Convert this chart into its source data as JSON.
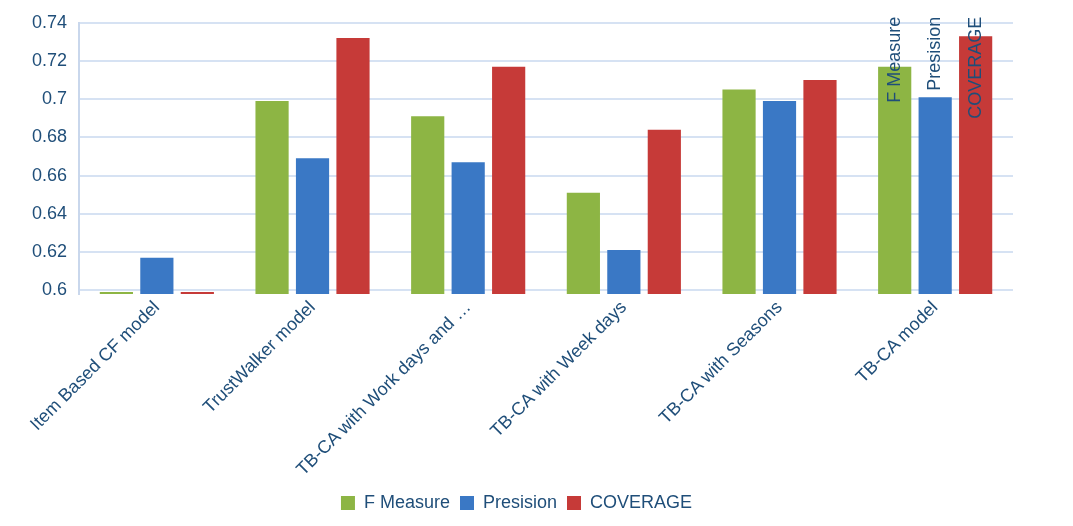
{
  "chart_data": {
    "type": "bar",
    "categories": [
      "Item Based CF model",
      "TrustWalker model",
      "TB-CA with Work days and …",
      "TB-CA with Week days",
      "TB-CA with Seasons",
      "TB-CA model"
    ],
    "series": [
      {
        "name": "F Measure",
        "color": "#8db544",
        "values": [
          0.599,
          0.699,
          0.691,
          0.651,
          0.705,
          0.717
        ]
      },
      {
        "name": "Presision",
        "color": "#3a78c5",
        "values": [
          0.617,
          0.669,
          0.667,
          0.621,
          0.699,
          0.701
        ]
      },
      {
        "name": "COVERAGE",
        "color": "#c63a38",
        "values": [
          0.599,
          0.732,
          0.717,
          0.684,
          0.71,
          0.733
        ]
      }
    ],
    "ylim": [
      0.598,
      0.74
    ],
    "yticks": [
      0.6,
      0.62,
      0.64,
      0.66,
      0.68,
      0.7,
      0.72,
      0.74
    ],
    "grid": "y",
    "legend": "bottom",
    "annotations": [
      "F Measure",
      "Presision",
      "COVERAGE"
    ]
  }
}
